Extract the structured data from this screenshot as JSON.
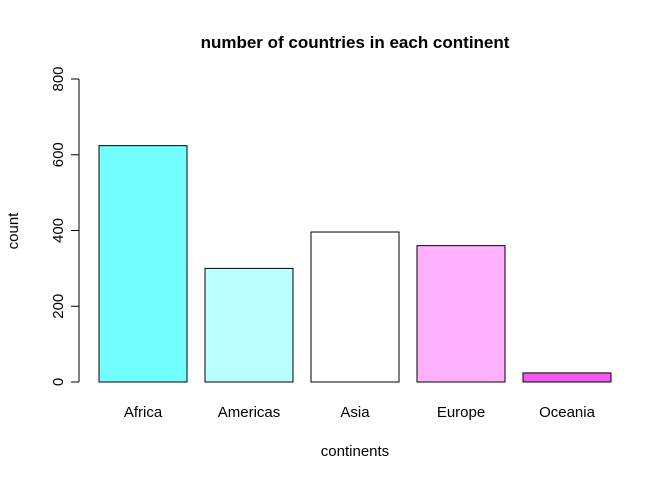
{
  "chart_data": {
    "type": "bar",
    "title": "number of countries in each continent",
    "xlabel": "continents",
    "ylabel": "count",
    "categories": [
      "Africa",
      "Americas",
      "Asia",
      "Europe",
      "Oceania"
    ],
    "values": [
      624,
      300,
      396,
      360,
      24
    ],
    "colors": [
      "#73FFFF",
      "#B9FFFF",
      "#FFFFFF",
      "#FFB0FF",
      "#F05AF0"
    ],
    "bar_border_color": "#000000",
    "ylim": [
      0,
      800
    ],
    "yticks": [
      "0",
      "200",
      "400",
      "600",
      "800"
    ],
    "grid": false,
    "legend": "none"
  }
}
